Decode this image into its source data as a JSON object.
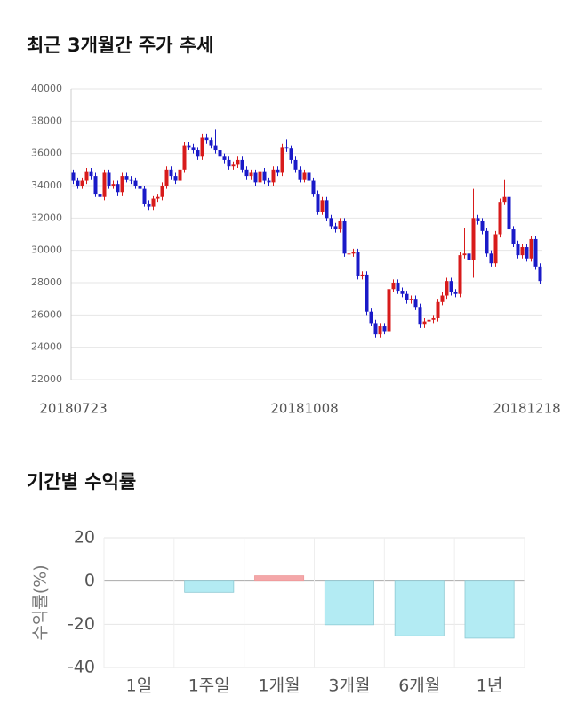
{
  "chart_data": [
    {
      "type": "candlestick",
      "title": "최근 3개월간 주가 추세",
      "categories": [
        "20180723",
        null,
        null,
        null,
        null,
        null,
        null,
        null,
        null,
        null,
        null,
        null,
        null,
        null,
        null,
        null,
        null,
        null,
        null,
        null,
        null,
        null,
        null,
        null,
        null,
        null,
        null,
        null,
        null,
        null,
        null,
        null,
        null,
        null,
        null,
        null,
        null,
        null,
        null,
        null,
        null,
        null,
        null,
        null,
        null,
        null,
        null,
        null,
        null,
        null,
        null,
        null,
        "20181008",
        null,
        null,
        null,
        null,
        null,
        null,
        null,
        null,
        null,
        null,
        null,
        null,
        null,
        null,
        null,
        null,
        null,
        null,
        null,
        null,
        null,
        null,
        null,
        null,
        null,
        null,
        null,
        null,
        null,
        null,
        null,
        null,
        null,
        null,
        null,
        null,
        null,
        null,
        null,
        null,
        null,
        null,
        null,
        null,
        null,
        null,
        null,
        null,
        null,
        "20181218",
        null,
        null,
        null
      ],
      "open": [
        34800,
        34300,
        34000,
        34300,
        34900,
        34600,
        33500,
        33300,
        34800,
        34000,
        34100,
        33600,
        34600,
        34400,
        34300,
        34000,
        33800,
        32900,
        32700,
        33200,
        33300,
        34000,
        35000,
        34600,
        34300,
        35000,
        36500,
        36400,
        36200,
        35800,
        37000,
        36800,
        36500,
        36200,
        35800,
        35600,
        35200,
        35300,
        35600,
        35000,
        34600,
        34800,
        34200,
        34900,
        34300,
        34200,
        35000,
        34800,
        36400,
        36300,
        35600,
        35000,
        34400,
        34800,
        34300,
        33500,
        32400,
        33100,
        32000,
        31500,
        31300,
        31800,
        29800,
        29800,
        29900,
        28400,
        28500,
        26200,
        25500,
        24800,
        25300,
        25000,
        27600,
        28000,
        27500,
        27300,
        26900,
        27000,
        26500,
        25400,
        25600,
        25700,
        25800,
        26800,
        27200,
        28100,
        27400,
        27300,
        29700,
        29800,
        29400,
        32000,
        31800,
        31200,
        29800,
        29200,
        31000,
        33000,
        33300,
        31300,
        30400,
        29700,
        30200,
        29500,
        30700,
        29000
      ],
      "high": [
        35000,
        34500,
        34500,
        35100,
        35100,
        34800,
        33700,
        35000,
        35000,
        34300,
        34300,
        34800,
        34800,
        34600,
        34500,
        34200,
        34000,
        33100,
        33400,
        33500,
        34200,
        35200,
        35200,
        34800,
        35200,
        36700,
        36700,
        36600,
        36400,
        37200,
        37200,
        37000,
        37500,
        36400,
        36000,
        35800,
        35500,
        35800,
        35800,
        35200,
        35000,
        35000,
        35100,
        35100,
        34500,
        35200,
        35200,
        36600,
        36900,
        36500,
        35800,
        35200,
        35000,
        35000,
        34500,
        33700,
        33300,
        33300,
        32200,
        31700,
        32000,
        32000,
        30800,
        30100,
        30100,
        28700,
        28700,
        26400,
        25700,
        25500,
        25500,
        31800,
        28200,
        28200,
        27700,
        27500,
        27200,
        27200,
        26700,
        25800,
        25900,
        26000,
        27000,
        27400,
        28300,
        28300,
        27600,
        29900,
        31400,
        30000,
        33800,
        32200,
        32000,
        31400,
        30000,
        31200,
        33200,
        34400,
        33500,
        31500,
        30600,
        30400,
        30400,
        30900,
        30900,
        29200
      ],
      "low": [
        34100,
        33800,
        33800,
        34100,
        34400,
        33300,
        33100,
        33100,
        33800,
        33800,
        33400,
        33400,
        34200,
        34100,
        33800,
        33600,
        32700,
        32500,
        32500,
        33000,
        33100,
        33800,
        34400,
        34100,
        34100,
        34800,
        36200,
        36000,
        35600,
        35600,
        36600,
        36300,
        36000,
        35600,
        35400,
        35000,
        35000,
        35100,
        34800,
        34400,
        34400,
        34000,
        34000,
        34100,
        34000,
        34000,
        34600,
        34600,
        36100,
        35400,
        34800,
        34200,
        34200,
        34100,
        33300,
        32200,
        32200,
        31800,
        31300,
        31100,
        31100,
        29600,
        29600,
        29600,
        28200,
        28200,
        26000,
        25300,
        24600,
        24600,
        24800,
        24800,
        27400,
        27300,
        27100,
        26700,
        26700,
        26300,
        25200,
        25200,
        25400,
        25500,
        25600,
        26600,
        27000,
        27200,
        27100,
        27100,
        29500,
        29200,
        28300,
        31600,
        31000,
        29600,
        29000,
        29000,
        30800,
        32800,
        31100,
        30200,
        29500,
        29500,
        29300,
        29300,
        28800,
        27900
      ],
      "close": [
        34300,
        34000,
        34300,
        34900,
        34600,
        33500,
        33300,
        34800,
        34000,
        34100,
        33600,
        34600,
        34400,
        34300,
        34000,
        33800,
        32900,
        32700,
        33200,
        33300,
        34000,
        35000,
        34600,
        34300,
        35000,
        36500,
        36400,
        36200,
        35800,
        37000,
        36800,
        36500,
        36200,
        35800,
        35600,
        35200,
        35300,
        35600,
        35000,
        34600,
        34800,
        34200,
        34900,
        34300,
        34200,
        35000,
        34800,
        36400,
        36300,
        35600,
        35000,
        34400,
        34800,
        34300,
        33500,
        32400,
        33100,
        32000,
        31500,
        31300,
        31800,
        29800,
        29800,
        29900,
        28400,
        28500,
        26200,
        25500,
        24800,
        25300,
        25000,
        27600,
        28000,
        27500,
        27300,
        26900,
        27000,
        26500,
        25400,
        25600,
        25700,
        25800,
        26800,
        27200,
        28100,
        27400,
        27300,
        29700,
        29800,
        29400,
        32000,
        31800,
        31200,
        29800,
        29200,
        31000,
        33000,
        33300,
        31300,
        30400,
        29700,
        30200,
        29500,
        30700,
        29000,
        28100
      ],
      "up_color": "#d81b1b",
      "down_color": "#1a1ac8",
      "ylim": [
        22000,
        40000
      ],
      "yticks": [
        22000,
        24000,
        26000,
        28000,
        30000,
        32000,
        34000,
        36000,
        38000,
        40000
      ],
      "grid": true
    },
    {
      "type": "bar",
      "title": "기간별 수익률",
      "ylabel": "수익률(%)",
      "categories": [
        "1일",
        "1주일",
        "1개월",
        "3개월",
        "6개월",
        "1년"
      ],
      "values": [
        0,
        -5.2,
        2.5,
        -20.2,
        -25.3,
        -26.4
      ],
      "positive_color": "#f4a7a9",
      "negative_color": "#b3ebf3",
      "ylim": [
        -40,
        20
      ],
      "yticks": [
        -40,
        -20,
        0,
        20
      ],
      "grid": true
    }
  ]
}
